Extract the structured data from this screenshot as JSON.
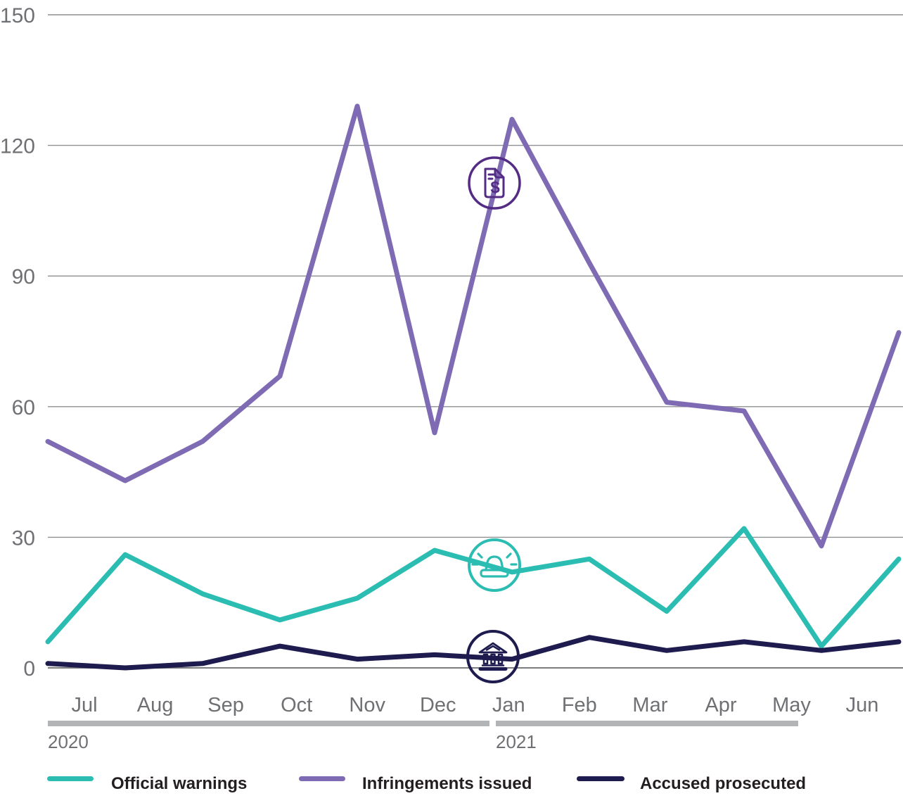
{
  "chart_data": {
    "type": "line",
    "title": "",
    "months": [
      "Jul",
      "Aug",
      "Sep",
      "Oct",
      "Nov",
      "Dec",
      "Jan",
      "Feb",
      "Mar",
      "Apr",
      "May",
      "Jun"
    ],
    "y_ticks": [
      0,
      30,
      60,
      90,
      120,
      150
    ],
    "ylim": [
      0,
      150
    ],
    "grid": "horizontal-only",
    "legend_position": "bottom",
    "year_groups": [
      {
        "label": "2020",
        "months": [
          "Jul",
          "Aug",
          "Sep",
          "Oct",
          "Nov",
          "Dec"
        ]
      },
      {
        "label": "2021",
        "months": [
          "Jan",
          "Feb",
          "Mar",
          "Apr",
          "May",
          "Jun"
        ]
      }
    ],
    "series": [
      {
        "name": "Official warnings",
        "color": "#2bbdb2",
        "values": [
          6,
          26,
          17,
          11,
          16,
          27,
          22,
          25,
          13,
          32,
          5,
          25
        ]
      },
      {
        "name": "Infringements issued",
        "color": "#7e6bb3",
        "values": [
          52,
          43,
          52,
          67,
          129,
          54,
          126,
          93,
          61,
          59,
          28,
          77
        ]
      },
      {
        "name": "Accused prosecuted",
        "color": "#1e1b4f",
        "values": [
          1,
          0,
          1,
          5,
          2,
          3,
          2,
          7,
          4,
          6,
          4,
          6
        ]
      }
    ],
    "annotations": [
      {
        "icon": "invoice-dollar-icon",
        "glyph": "$",
        "attached_series": "Infringements issued",
        "position": "between Dec 2020 and Jan 2021",
        "color": "#542c85"
      },
      {
        "icon": "siren-icon",
        "attached_series": "Official warnings",
        "position": "between Dec 2020 and Jan 2021",
        "color": "#2bbdb2"
      },
      {
        "icon": "courthouse-icon",
        "attached_series": "Accused prosecuted",
        "position": "between Dec 2020 and Jan 2021",
        "color": "#1e1b4f"
      }
    ]
  },
  "colors": {
    "grid": "#8e8f91",
    "zero_line": "#7b7c7e",
    "axis_text": "#6f7073",
    "year_bar": "#b2b4b6",
    "legend_text": "#231f20",
    "background": "#ffffff"
  }
}
